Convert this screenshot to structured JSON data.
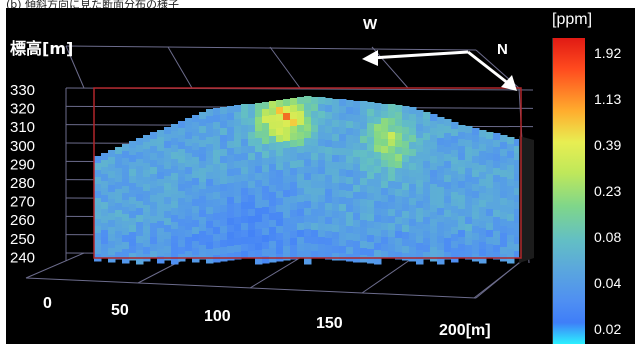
{
  "caption": "(b) 傾斜方向に見た断面分布の様子",
  "chart_data": {
    "type": "heatmap",
    "title": "",
    "zlabel": "標高[m]",
    "z_ticks": [
      "330",
      "320",
      "310",
      "300",
      "290",
      "280",
      "270",
      "260",
      "250",
      "240"
    ],
    "x_ticks": [
      "0",
      "50",
      "100",
      "150",
      "200[m]"
    ],
    "direction_labels": [
      "W",
      "N"
    ],
    "colorbar": {
      "unit": "[ppm]",
      "ticks": [
        "1.92",
        "1.13",
        "0.39",
        "0.23",
        "0.08",
        "0.04",
        "0.02"
      ],
      "colors": [
        "#e01a14",
        "#ffae2e",
        "#e8ee52",
        "#7fd68a",
        "#5aa6de",
        "#3f7ef8",
        "#2cf0ff"
      ]
    },
    "zlim": [
      240,
      330
    ],
    "xlim": [
      0,
      200
    ]
  }
}
